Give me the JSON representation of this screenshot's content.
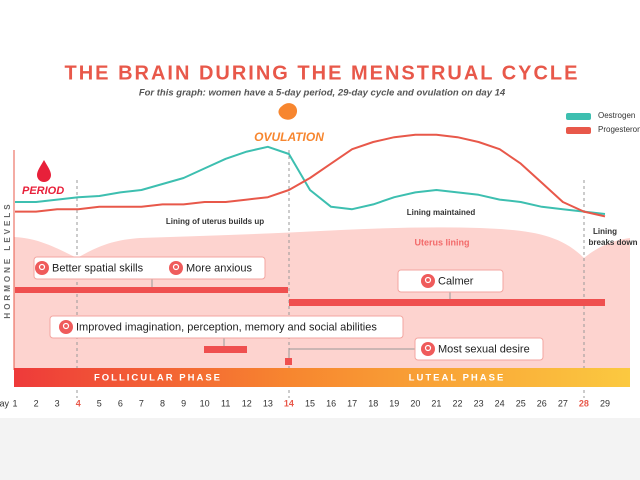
{
  "chart_data": {
    "type": "line",
    "title": "THE BRAIN DURING THE MENSTRUAL CYCLE",
    "subtitle": "For this graph: women have a 5-day period, 29-day cycle and ovulation on day 14",
    "y_label": "HORMONE LEVELS",
    "x_label": "Day",
    "x": [
      1,
      2,
      3,
      4,
      5,
      6,
      7,
      8,
      9,
      10,
      11,
      12,
      13,
      14,
      15,
      16,
      17,
      18,
      19,
      20,
      21,
      22,
      23,
      24,
      25,
      26,
      27,
      28,
      29
    ],
    "highlight": {
      "days": [
        4,
        14,
        28
      ],
      "color": "#e8584a"
    },
    "xlim": [
      1,
      29
    ],
    "ylim": [
      0,
      100
    ],
    "series": [
      {
        "name": "Oestrogen",
        "color": "#3dbfb0",
        "values": [
          70,
          70,
          71,
          72,
          72.5,
          74,
          75,
          77.5,
          80,
          84,
          88,
          91,
          93,
          90,
          75,
          68,
          67,
          69,
          72,
          74,
          75,
          74,
          73,
          71,
          70,
          68,
          67,
          66,
          65
        ]
      },
      {
        "name": "Progesterone",
        "color": "#e8584a",
        "values": [
          66,
          66,
          67,
          67,
          68,
          68,
          68,
          69,
          69,
          70,
          70,
          71,
          72,
          75,
          80,
          86,
          92,
          95,
          97,
          98,
          98,
          97,
          95,
          92,
          86,
          78,
          70,
          66,
          64
        ]
      }
    ],
    "annotations": {
      "period": "PERIOD",
      "ovulation": "OVULATION",
      "lining_builds": "Lining of uterus builds up",
      "lining_maintained": "Lining maintained",
      "uterus_lining": "Uterus lining",
      "lining_breaks": [
        "Lining",
        "breaks down"
      ]
    },
    "callouts": [
      "Better spatial skills",
      "More anxious",
      "Calmer",
      "Improved imagination, perception, memory and social abilities",
      "Most sexual desire"
    ],
    "phases": [
      "FOLLICULAR PHASE",
      "LUTEAL PHASE"
    ]
  }
}
